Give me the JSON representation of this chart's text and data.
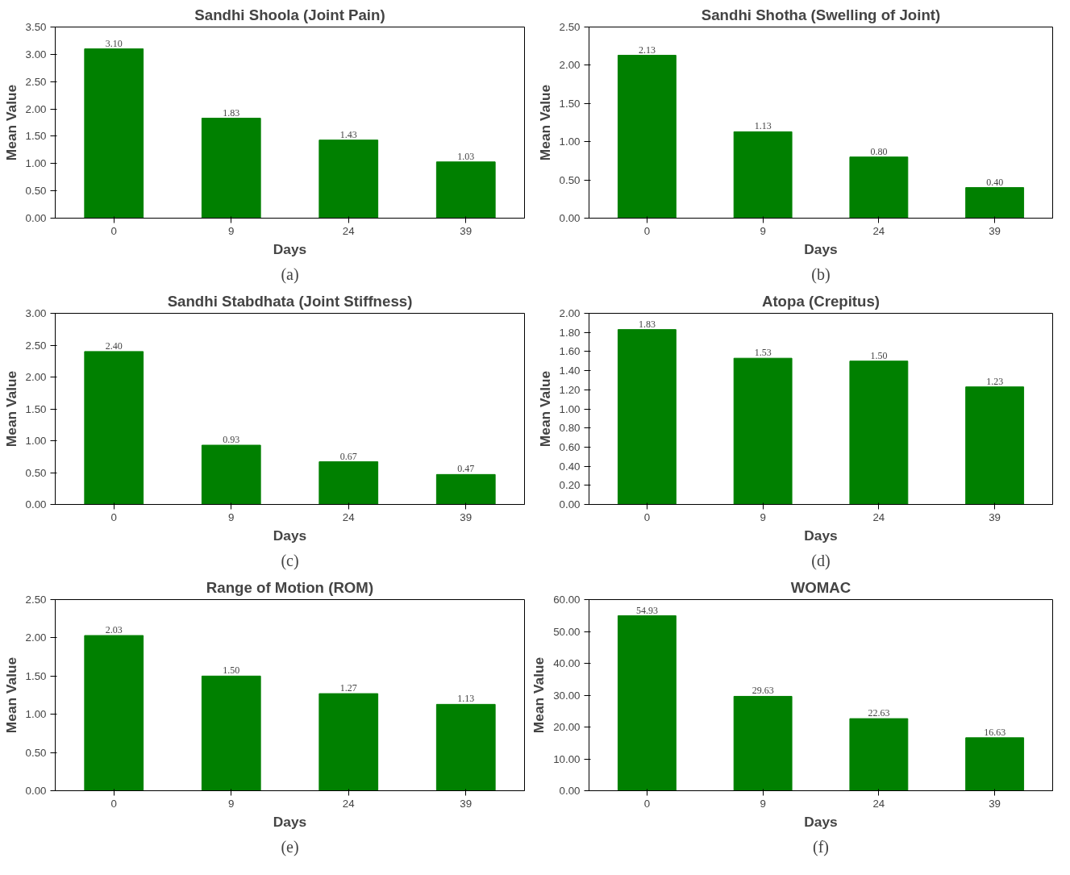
{
  "chart_data": [
    {
      "type": "bar",
      "title": "Sandhi Shoola (Joint Pain)",
      "xlabel": "Days",
      "ylabel": "Mean Value",
      "categories": [
        "0",
        "9",
        "24",
        "39"
      ],
      "values": [
        3.1,
        1.83,
        1.43,
        1.03
      ],
      "value_labels": [
        "3.10",
        "1.83",
        "1.43",
        "1.03"
      ],
      "color": "#008000",
      "ylim": [
        0,
        3.5
      ],
      "yticks": [
        {
          "value": 0,
          "label": "0.00"
        },
        {
          "value": 0.5,
          "label": "0.50"
        },
        {
          "value": 1,
          "label": "1.00"
        },
        {
          "value": 1.5,
          "label": "1.50"
        },
        {
          "value": 2,
          "label": "2.00"
        },
        {
          "value": 2.5,
          "label": "2.50"
        },
        {
          "value": 3,
          "label": "3.00"
        },
        {
          "value": 3.5,
          "label": "3.50"
        }
      ],
      "annotations": [
        "(a)"
      ]
    },
    {
      "type": "bar",
      "title": "Sandhi Shotha (Swelling of Joint)",
      "xlabel": "Days",
      "ylabel": "Mean Value",
      "categories": [
        "0",
        "9",
        "24",
        "39"
      ],
      "values": [
        2.13,
        1.13,
        0.8,
        0.4
      ],
      "value_labels": [
        "2.13",
        "1.13",
        "0.80",
        "0.40"
      ],
      "color": "#008000",
      "ylim": [
        0,
        2.5
      ],
      "yticks": [
        {
          "value": 0,
          "label": "0.00"
        },
        {
          "value": 0.5,
          "label": "0.50"
        },
        {
          "value": 1,
          "label": "1.00"
        },
        {
          "value": 1.5,
          "label": "1.50"
        },
        {
          "value": 2,
          "label": "2.00"
        },
        {
          "value": 2.5,
          "label": "2.50"
        }
      ],
      "annotations": [
        "(b)"
      ]
    },
    {
      "type": "bar",
      "title": "Sandhi Stabdhata (Joint Stiffness)",
      "xlabel": "Days",
      "ylabel": "Mean Value",
      "categories": [
        "0",
        "9",
        "24",
        "39"
      ],
      "values": [
        2.4,
        0.93,
        0.67,
        0.47
      ],
      "value_labels": [
        "2.40",
        "0.93",
        "0.67",
        "0.47"
      ],
      "color": "#008000",
      "ylim": [
        0,
        3
      ],
      "yticks": [
        {
          "value": 0,
          "label": "0.00"
        },
        {
          "value": 0.5,
          "label": "0.50"
        },
        {
          "value": 1,
          "label": "1.00"
        },
        {
          "value": 1.5,
          "label": "1.50"
        },
        {
          "value": 2,
          "label": "2.00"
        },
        {
          "value": 2.5,
          "label": "2.50"
        },
        {
          "value": 3,
          "label": "3.00"
        }
      ],
      "annotations": [
        "(c)"
      ]
    },
    {
      "type": "bar",
      "title": "Atopa (Crepitus)",
      "xlabel": "Days",
      "ylabel": "Mean Value",
      "categories": [
        "0",
        "9",
        "24",
        "39"
      ],
      "values": [
        1.83,
        1.53,
        1.5,
        1.23
      ],
      "value_labels": [
        "1.83",
        "1.53",
        "1.50",
        "1.23"
      ],
      "color": "#008000",
      "ylim": [
        0,
        2
      ],
      "yticks": [
        {
          "value": 0,
          "label": "0.00"
        },
        {
          "value": 0.2,
          "label": "0.20"
        },
        {
          "value": 0.4,
          "label": "0.40"
        },
        {
          "value": 0.6,
          "label": "0.60"
        },
        {
          "value": 0.8,
          "label": "0.80"
        },
        {
          "value": 1,
          "label": "1.00"
        },
        {
          "value": 1.2,
          "label": "1.20"
        },
        {
          "value": 1.4,
          "label": "1.40"
        },
        {
          "value": 1.6,
          "label": "1.60"
        },
        {
          "value": 1.8,
          "label": "1.80"
        },
        {
          "value": 2,
          "label": "2.00"
        }
      ],
      "annotations": [
        "(d)"
      ]
    },
    {
      "type": "bar",
      "title": "Range of Motion (ROM)",
      "xlabel": "Days",
      "ylabel": "Mean Value",
      "categories": [
        "0",
        "9",
        "24",
        "39"
      ],
      "values": [
        2.03,
        1.5,
        1.27,
        1.13
      ],
      "value_labels": [
        "2.03",
        "1.50",
        "1.27",
        "1.13"
      ],
      "color": "#008000",
      "ylim": [
        0,
        2.5
      ],
      "yticks": [
        {
          "value": 0,
          "label": "0.00"
        },
        {
          "value": 0.5,
          "label": "0.50"
        },
        {
          "value": 1,
          "label": "1.00"
        },
        {
          "value": 1.5,
          "label": "1.50"
        },
        {
          "value": 2,
          "label": "2.00"
        },
        {
          "value": 2.5,
          "label": "2.50"
        }
      ],
      "annotations": [
        "(e)"
      ]
    },
    {
      "type": "bar",
      "title": "WOMAC",
      "xlabel": "Days",
      "ylabel": "Mean Value",
      "categories": [
        "0",
        "9",
        "24",
        "39"
      ],
      "values": [
        54.93,
        29.63,
        22.63,
        16.63
      ],
      "value_labels": [
        "54.93",
        "29.63",
        "22.63",
        "16.63"
      ],
      "color": "#008000",
      "ylim": [
        0,
        60
      ],
      "yticks": [
        {
          "value": 0,
          "label": "0.00"
        },
        {
          "value": 10,
          "label": "10.00"
        },
        {
          "value": 20,
          "label": "20.00"
        },
        {
          "value": 30,
          "label": "30.00"
        },
        {
          "value": 40,
          "label": "40.00"
        },
        {
          "value": 50,
          "label": "50.00"
        },
        {
          "value": 60,
          "label": "60.00"
        }
      ],
      "annotations": [
        "(f)"
      ]
    }
  ]
}
